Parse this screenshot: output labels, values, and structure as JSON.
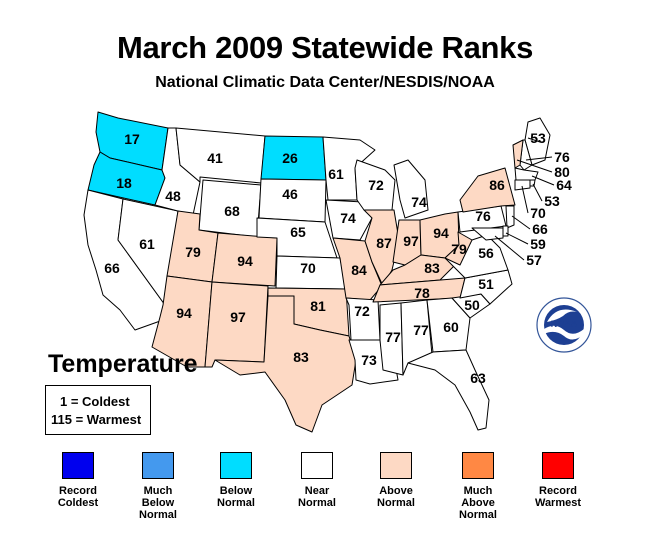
{
  "header": {
    "title": "March 2009 Statewide Ranks",
    "subtitle": "National Climatic Data Center/NESDIS/NOAA"
  },
  "parameter": "Temperature",
  "key": {
    "coldest": "1 = Coldest",
    "warmest": "115 = Warmest"
  },
  "colors": {
    "record_coldest": "#0000ee",
    "much_below": "#4499ee",
    "below": "#00ddff",
    "near": "#ffffff",
    "above": "#fdd9c4",
    "much_above": "#ff8844",
    "record_warmest": "#ff0000"
  },
  "legend": [
    {
      "label": "Record\nColdest",
      "color": "#0000ee"
    },
    {
      "label": "Much\nBelow\nNormal",
      "color": "#4499ee"
    },
    {
      "label": "Below\nNormal",
      "color": "#00ddff"
    },
    {
      "label": "Near\nNormal",
      "color": "#ffffff"
    },
    {
      "label": "Above\nNormal",
      "color": "#fdd9c4"
    },
    {
      "label": "Much\nAbove\nNormal",
      "color": "#ff8844"
    },
    {
      "label": "Record\nWarmest",
      "color": "#ff0000"
    }
  ],
  "states": [
    {
      "name": "Washington",
      "rank": "17",
      "category": "below"
    },
    {
      "name": "Oregon",
      "rank": "18",
      "category": "below"
    },
    {
      "name": "California",
      "rank": "66",
      "category": "near"
    },
    {
      "name": "Nevada",
      "rank": "61",
      "category": "near"
    },
    {
      "name": "Idaho",
      "rank": "48",
      "category": "near"
    },
    {
      "name": "Montana",
      "rank": "41",
      "category": "near"
    },
    {
      "name": "Wyoming",
      "rank": "68",
      "category": "near"
    },
    {
      "name": "Utah",
      "rank": "79",
      "category": "above"
    },
    {
      "name": "Arizona",
      "rank": "94",
      "category": "above"
    },
    {
      "name": "Colorado",
      "rank": "94",
      "category": "above"
    },
    {
      "name": "New Mexico",
      "rank": "97",
      "category": "above"
    },
    {
      "name": "North Dakota",
      "rank": "26",
      "category": "below"
    },
    {
      "name": "South Dakota",
      "rank": "46",
      "category": "near"
    },
    {
      "name": "Nebraska",
      "rank": "65",
      "category": "near"
    },
    {
      "name": "Kansas",
      "rank": "70",
      "category": "near"
    },
    {
      "name": "Oklahoma",
      "rank": "81",
      "category": "above"
    },
    {
      "name": "Texas",
      "rank": "83",
      "category": "above"
    },
    {
      "name": "Minnesota",
      "rank": "61",
      "category": "near"
    },
    {
      "name": "Iowa",
      "rank": "74",
      "category": "near"
    },
    {
      "name": "Missouri",
      "rank": "84",
      "category": "above"
    },
    {
      "name": "Arkansas",
      "rank": "72",
      "category": "near"
    },
    {
      "name": "Louisiana",
      "rank": "73",
      "category": "near"
    },
    {
      "name": "Wisconsin",
      "rank": "72",
      "category": "near"
    },
    {
      "name": "Illinois",
      "rank": "87",
      "category": "above"
    },
    {
      "name": "Michigan",
      "rank": "74",
      "category": "near"
    },
    {
      "name": "Indiana",
      "rank": "97",
      "category": "above"
    },
    {
      "name": "Ohio",
      "rank": "94",
      "category": "above"
    },
    {
      "name": "Kentucky",
      "rank": "83",
      "category": "above"
    },
    {
      "name": "Tennessee",
      "rank": "78",
      "category": "above"
    },
    {
      "name": "Mississippi",
      "rank": "77",
      "category": "near"
    },
    {
      "name": "Alabama",
      "rank": "77",
      "category": "near"
    },
    {
      "name": "Georgia",
      "rank": "60",
      "category": "near"
    },
    {
      "name": "Florida",
      "rank": "63",
      "category": "near"
    },
    {
      "name": "South Carolina",
      "rank": "50",
      "category": "near"
    },
    {
      "name": "North Carolina",
      "rank": "51",
      "category": "near"
    },
    {
      "name": "Virginia",
      "rank": "56",
      "category": "near"
    },
    {
      "name": "West Virginia",
      "rank": "79",
      "category": "above"
    },
    {
      "name": "Pennsylvania",
      "rank": "76",
      "category": "near"
    },
    {
      "name": "New York",
      "rank": "86",
      "category": "above"
    },
    {
      "name": "Maine",
      "rank": "53",
      "category": "near"
    },
    {
      "name": "New Hampshire",
      "rank": "76",
      "category": "near"
    },
    {
      "name": "Vermont",
      "rank": "80",
      "category": "above"
    },
    {
      "name": "Massachusetts",
      "rank": "64",
      "category": "near"
    },
    {
      "name": "Rhode Island",
      "rank": "53",
      "category": "near"
    },
    {
      "name": "Connecticut",
      "rank": "70",
      "category": "near"
    },
    {
      "name": "New Jersey",
      "rank": "66",
      "category": "near"
    },
    {
      "name": "Delaware",
      "rank": "59",
      "category": "near"
    },
    {
      "name": "Maryland",
      "rank": "57",
      "category": "near"
    }
  ]
}
